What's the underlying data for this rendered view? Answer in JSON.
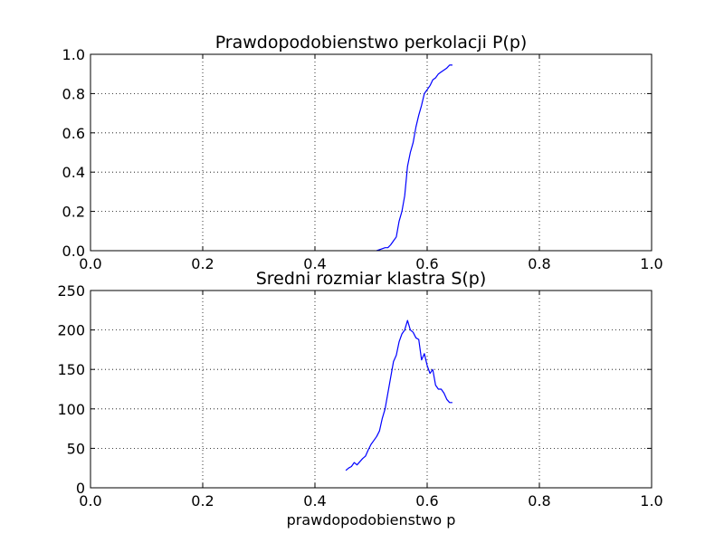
{
  "chart_data": [
    {
      "type": "line",
      "title": "Prawdopodobienstwo perkolacji P(p)",
      "xlabel": "",
      "ylabel": "",
      "xlim": [
        0.0,
        1.0
      ],
      "ylim": [
        0.0,
        1.0
      ],
      "grid": true,
      "xticks": [
        "0.0",
        "0.2",
        "0.4",
        "0.6",
        "0.8",
        "1.0"
      ],
      "yticks": [
        "0.0",
        "0.2",
        "0.4",
        "0.6",
        "0.8",
        "1.0"
      ],
      "color": "#0000ff",
      "x": [
        0.51,
        0.52,
        0.525,
        0.53,
        0.535,
        0.54,
        0.545,
        0.55,
        0.555,
        0.56,
        0.565,
        0.57,
        0.575,
        0.58,
        0.585,
        0.59,
        0.595,
        0.6,
        0.605,
        0.61,
        0.615,
        0.62,
        0.625,
        0.63,
        0.635,
        0.64,
        0.645
      ],
      "y": [
        0.0,
        0.01,
        0.015,
        0.015,
        0.03,
        0.05,
        0.07,
        0.15,
        0.2,
        0.28,
        0.43,
        0.5,
        0.55,
        0.63,
        0.69,
        0.74,
        0.8,
        0.82,
        0.84,
        0.87,
        0.88,
        0.9,
        0.91,
        0.92,
        0.93,
        0.945,
        0.945
      ]
    },
    {
      "type": "line",
      "title": "Sredni rozmiar klastra S(p)",
      "xlabel": "prawdopodobienstwo p",
      "ylabel": "",
      "xlim": [
        0.0,
        1.0
      ],
      "ylim": [
        0,
        250
      ],
      "grid": true,
      "xticks": [
        "0.0",
        "0.2",
        "0.4",
        "0.6",
        "0.8",
        "1.0"
      ],
      "yticks": [
        "0",
        "50",
        "100",
        "150",
        "200",
        "250"
      ],
      "color": "#0000ff",
      "x": [
        0.455,
        0.46,
        0.465,
        0.47,
        0.475,
        0.48,
        0.485,
        0.49,
        0.495,
        0.5,
        0.505,
        0.51,
        0.515,
        0.52,
        0.525,
        0.53,
        0.535,
        0.54,
        0.545,
        0.55,
        0.555,
        0.56,
        0.565,
        0.57,
        0.575,
        0.58,
        0.585,
        0.59,
        0.595,
        0.6,
        0.605,
        0.61,
        0.615,
        0.62,
        0.625,
        0.63,
        0.635,
        0.64,
        0.645
      ],
      "y": [
        22,
        25,
        27,
        32,
        29,
        33,
        37,
        40,
        48,
        55,
        60,
        65,
        72,
        88,
        100,
        120,
        140,
        160,
        168,
        185,
        195,
        200,
        212,
        200,
        197,
        190,
        188,
        162,
        170,
        155,
        145,
        150,
        130,
        125,
        125,
        120,
        112,
        108,
        108
      ]
    }
  ]
}
